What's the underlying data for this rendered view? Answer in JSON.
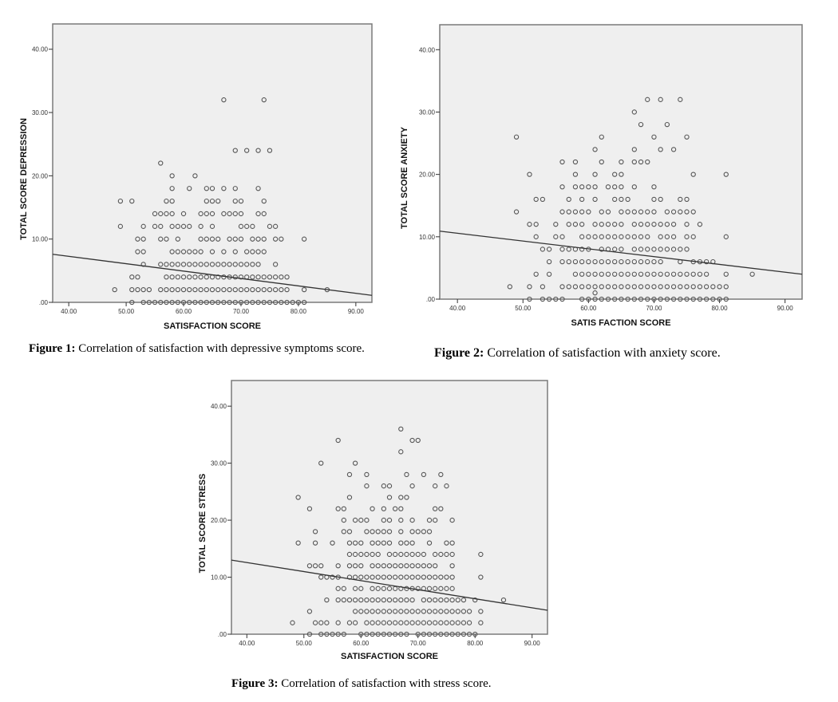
{
  "chart_data": [
    {
      "type": "scatter",
      "title": "",
      "caption_label": "Figure 1:",
      "caption_text": " Correlation of satisfaction with depressive symptoms score.",
      "xlabel": "SATISFACTION SCORE",
      "ylabel": "TOTAL SCORE DEPRESSION",
      "xlim": [
        37.2,
        92.8
      ],
      "ylim": [
        0,
        44
      ],
      "xticks": [
        40,
        50,
        60,
        70,
        80,
        90
      ],
      "xtick_labels": [
        "40.00",
        "50.00",
        "60.00",
        "70.00",
        "80.00",
        "90.00"
      ],
      "yticks": [
        0,
        10,
        20,
        30,
        40
      ],
      "ytick_labels": [
        ".00",
        "10.00",
        "20.00",
        "30.00",
        "40.00"
      ],
      "grid": false,
      "background": "#efefef",
      "marker": "open-circle",
      "fit_line": {
        "x": [
          37.2,
          92.8
        ],
        "y": [
          7.6,
          1.1
        ]
      },
      "rows": [
        {
          "y": 32,
          "x": [
            67,
            74
          ]
        },
        {
          "y": 24,
          "x": [
            69,
            71,
            73,
            75
          ]
        },
        {
          "y": 22,
          "x": [
            56
          ]
        },
        {
          "y": 20,
          "x": [
            58,
            62
          ]
        },
        {
          "y": 18,
          "x": [
            58,
            61,
            64,
            65,
            67,
            69,
            73
          ]
        },
        {
          "y": 16,
          "x": [
            49,
            51,
            57,
            58,
            64,
            65,
            66,
            69,
            70,
            74
          ]
        },
        {
          "y": 14,
          "x": [
            55,
            56,
            57,
            58,
            60,
            63,
            64,
            65,
            67,
            68,
            69,
            70,
            73,
            74
          ]
        },
        {
          "y": 12,
          "x": [
            49,
            53,
            55,
            56,
            58,
            59,
            60,
            61,
            63,
            65,
            70,
            71,
            72,
            75,
            76
          ]
        },
        {
          "y": 10,
          "x": [
            52,
            53,
            56,
            57,
            59,
            63,
            64,
            65,
            66,
            68,
            69,
            70,
            72,
            73,
            74,
            76,
            77,
            81
          ]
        },
        {
          "y": 8,
          "x": [
            52,
            53,
            58,
            59,
            60,
            61,
            62,
            63,
            65,
            67,
            69,
            71,
            72,
            73,
            74
          ]
        },
        {
          "y": 6,
          "x": [
            53,
            56,
            57,
            58,
            59,
            60,
            61,
            62,
            63,
            64,
            65,
            66,
            67,
            68,
            69,
            70,
            71,
            72,
            73,
            76
          ]
        },
        {
          "y": 4,
          "x": [
            51,
            52,
            57,
            58,
            59,
            60,
            61,
            62,
            63,
            64,
            65,
            66,
            67,
            68,
            69,
            70,
            71,
            72,
            73,
            74,
            75,
            76,
            77,
            78
          ]
        },
        {
          "y": 2,
          "x": [
            48,
            51,
            52,
            53,
            54,
            56,
            57,
            58,
            59,
            60,
            61,
            62,
            63,
            64,
            65,
            66,
            67,
            68,
            69,
            70,
            71,
            72,
            73,
            74,
            75,
            76,
            77,
            78,
            81,
            85
          ]
        },
        {
          "y": 0,
          "x": [
            51,
            53,
            54,
            55,
            56,
            57,
            58,
            59,
            60,
            61,
            62,
            63,
            64,
            65,
            66,
            67,
            68,
            69,
            70,
            71,
            72,
            73,
            74,
            75,
            76,
            77,
            78,
            79,
            80,
            81
          ]
        }
      ]
    },
    {
      "type": "scatter",
      "title": "",
      "caption_label": "Figure 2:",
      "caption_text": " Correlation of satisfaction with anxiety score.",
      "xlabel": "SATIS FACTION SCORE",
      "ylabel": "TOTAL SCORE ANXIETY",
      "xlim": [
        37.3,
        92.6
      ],
      "ylim": [
        0,
        44
      ],
      "xticks": [
        40,
        50,
        60,
        70,
        80,
        90
      ],
      "xtick_labels": [
        "40.00",
        "50.00",
        "60.00",
        "70.00",
        "80.00",
        "90.00"
      ],
      "yticks": [
        0,
        10,
        20,
        30,
        40
      ],
      "ytick_labels": [
        ".00",
        "10.00",
        "20.00",
        "30.00",
        "40.00"
      ],
      "grid": false,
      "background": "#efefef",
      "marker": "open-circle",
      "fit_line": {
        "x": [
          37.3,
          92.6
        ],
        "y": [
          10.9,
          4.0
        ]
      },
      "rows": [
        {
          "y": 32,
          "x": [
            69,
            71,
            74
          ]
        },
        {
          "y": 30,
          "x": [
            67
          ]
        },
        {
          "y": 28,
          "x": [
            68,
            72
          ]
        },
        {
          "y": 26,
          "x": [
            49,
            62,
            70,
            75
          ]
        },
        {
          "y": 24,
          "x": [
            61,
            67,
            71,
            73
          ]
        },
        {
          "y": 22,
          "x": [
            56,
            58,
            62,
            65,
            67,
            68,
            69
          ]
        },
        {
          "y": 20,
          "x": [
            51,
            58,
            61,
            64,
            65,
            76,
            81
          ]
        },
        {
          "y": 18,
          "x": [
            56,
            58,
            59,
            60,
            61,
            63,
            64,
            65,
            67,
            70
          ]
        },
        {
          "y": 16,
          "x": [
            52,
            53,
            57,
            59,
            61,
            64,
            65,
            66,
            70,
            71,
            74,
            75
          ]
        },
        {
          "y": 14,
          "x": [
            49,
            56,
            57,
            58,
            59,
            60,
            62,
            63,
            65,
            66,
            67,
            68,
            69,
            70,
            72,
            73,
            74,
            75,
            76
          ]
        },
        {
          "y": 12,
          "x": [
            51,
            52,
            55,
            57,
            58,
            59,
            61,
            62,
            63,
            64,
            65,
            67,
            68,
            69,
            70,
            71,
            72,
            73,
            75,
            77
          ]
        },
        {
          "y": 10,
          "x": [
            52,
            55,
            56,
            59,
            60,
            61,
            62,
            63,
            64,
            65,
            66,
            67,
            68,
            69,
            71,
            72,
            73,
            75,
            76,
            81
          ]
        },
        {
          "y": 8,
          "x": [
            53,
            54,
            56,
            57,
            58,
            59,
            60,
            62,
            63,
            64,
            65,
            67,
            68,
            69,
            70,
            71,
            72,
            73,
            74,
            75
          ]
        },
        {
          "y": 6,
          "x": [
            54,
            56,
            57,
            58,
            59,
            60,
            61,
            62,
            63,
            64,
            65,
            66,
            67,
            68,
            69,
            70,
            71,
            74,
            76,
            77,
            78,
            79
          ]
        },
        {
          "y": 4,
          "x": [
            52,
            54,
            58,
            59,
            60,
            61,
            62,
            63,
            64,
            65,
            66,
            67,
            68,
            69,
            70,
            71,
            72,
            73,
            74,
            75,
            76,
            77,
            78,
            81,
            85
          ]
        },
        {
          "y": 2,
          "x": [
            48,
            51,
            53,
            56,
            57,
            58,
            59,
            60,
            61,
            62,
            63,
            64,
            65,
            66,
            67,
            68,
            69,
            70,
            71,
            72,
            73,
            74,
            75,
            76,
            77,
            78,
            79,
            80,
            81
          ]
        },
        {
          "y": 1,
          "x": [
            61
          ]
        },
        {
          "y": 0,
          "x": [
            51,
            53,
            54,
            55,
            56,
            59,
            60,
            61,
            62,
            63,
            64,
            65,
            66,
            67,
            68,
            69,
            70,
            71,
            72,
            73,
            74,
            75,
            76,
            77,
            78,
            79,
            80,
            81
          ]
        }
      ]
    },
    {
      "type": "scatter",
      "title": "",
      "caption_label": "Figure 3:",
      "caption_text": " Correlation of satisfaction with stress score.",
      "xlabel": "SATISFACTION SCORE",
      "ylabel": "TOTAL SCORE STRESS",
      "xlim": [
        37.3,
        92.7
      ],
      "ylim": [
        0,
        44.5
      ],
      "xticks": [
        40,
        50,
        60,
        70,
        80,
        90
      ],
      "xtick_labels": [
        "40.00",
        "50.00",
        "60.00",
        "70.00",
        "80.00",
        "90.00"
      ],
      "yticks": [
        0,
        10,
        20,
        30,
        40
      ],
      "ytick_labels": [
        ".00",
        "10.00",
        "20.00",
        "30.00",
        "40.00"
      ],
      "grid": false,
      "background": "#efefef",
      "marker": "open-circle",
      "fit_line": {
        "x": [
          37.3,
          92.7
        ],
        "y": [
          13.0,
          4.2
        ]
      },
      "rows": [
        {
          "y": 36,
          "x": [
            67
          ]
        },
        {
          "y": 34,
          "x": [
            56,
            69,
            70
          ]
        },
        {
          "y": 32,
          "x": [
            67
          ]
        },
        {
          "y": 30,
          "x": [
            53,
            59
          ]
        },
        {
          "y": 28,
          "x": [
            58,
            61,
            68,
            71,
            74
          ]
        },
        {
          "y": 26,
          "x": [
            61,
            64,
            65,
            69,
            73,
            75
          ]
        },
        {
          "y": 24,
          "x": [
            49,
            58,
            65,
            67,
            68
          ]
        },
        {
          "y": 22,
          "x": [
            51,
            56,
            57,
            62,
            64,
            66,
            67,
            73,
            74
          ]
        },
        {
          "y": 20,
          "x": [
            57,
            59,
            60,
            61,
            64,
            65,
            67,
            69,
            72,
            73,
            76
          ]
        },
        {
          "y": 18,
          "x": [
            52,
            57,
            58,
            61,
            62,
            63,
            64,
            65,
            67,
            69,
            70,
            71,
            72
          ]
        },
        {
          "y": 16,
          "x": [
            49,
            52,
            55,
            58,
            59,
            60,
            62,
            63,
            64,
            65,
            67,
            68,
            69,
            72,
            75,
            76
          ]
        },
        {
          "y": 14,
          "x": [
            58,
            59,
            60,
            61,
            62,
            63,
            65,
            66,
            67,
            68,
            69,
            70,
            71,
            73,
            74,
            75,
            76,
            81
          ]
        },
        {
          "y": 12,
          "x": [
            51,
            52,
            53,
            56,
            58,
            59,
            60,
            62,
            63,
            64,
            65,
            66,
            67,
            68,
            69,
            70,
            71,
            72,
            73,
            76
          ]
        },
        {
          "y": 10,
          "x": [
            53,
            54,
            55,
            56,
            58,
            59,
            60,
            61,
            62,
            63,
            64,
            65,
            66,
            67,
            68,
            69,
            70,
            71,
            72,
            73,
            74,
            75,
            76,
            81
          ]
        },
        {
          "y": 8,
          "x": [
            56,
            57,
            59,
            60,
            62,
            63,
            64,
            65,
            66,
            67,
            68,
            69,
            70,
            71,
            72,
            73,
            74,
            75,
            76
          ]
        },
        {
          "y": 6,
          "x": [
            54,
            56,
            57,
            58,
            59,
            60,
            61,
            62,
            63,
            64,
            65,
            66,
            67,
            68,
            69,
            71,
            72,
            73,
            74,
            75,
            76,
            77,
            78,
            80,
            85
          ]
        },
        {
          "y": 4,
          "x": [
            51,
            59,
            60,
            61,
            62,
            63,
            64,
            65,
            66,
            67,
            68,
            69,
            70,
            71,
            72,
            73,
            74,
            75,
            76,
            77,
            78,
            79,
            81
          ]
        },
        {
          "y": 2,
          "x": [
            48,
            52,
            53,
            54,
            56,
            58,
            59,
            61,
            62,
            63,
            64,
            65,
            66,
            67,
            68,
            69,
            70,
            71,
            72,
            73,
            74,
            75,
            76,
            77,
            78,
            79,
            81
          ]
        },
        {
          "y": 0,
          "x": [
            51,
            53,
            54,
            55,
            56,
            57,
            60,
            61,
            62,
            63,
            64,
            65,
            66,
            67,
            68,
            70,
            71,
            72,
            73,
            74,
            75,
            76,
            77,
            78,
            79,
            80
          ]
        }
      ]
    }
  ]
}
